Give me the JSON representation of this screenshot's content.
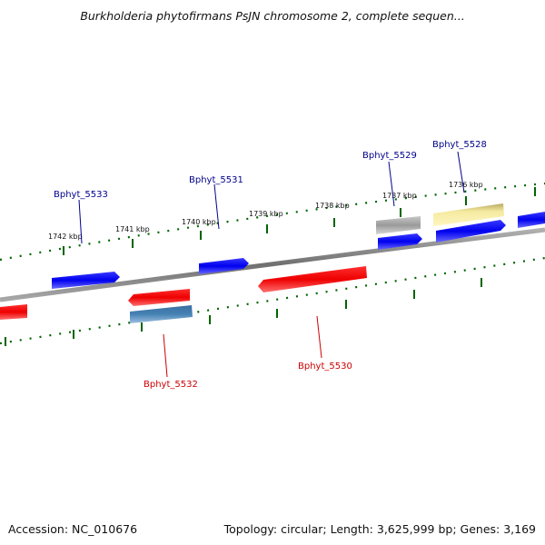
{
  "title": "Burkholderia phytofirmans PsJN chromosome 2, complete sequen...",
  "footer": {
    "accession": "Accession: NC_010676",
    "summary": "Topology: circular; Length: 3,625,999 bp; Genes: 3,169"
  },
  "ruler": {
    "unit_labels": [
      "1742 kbp",
      "1741 kbp",
      "1740 kbp",
      "1739 kbp",
      "1738 kbp",
      "1737 kbp",
      "1736 kbp"
    ]
  },
  "genes": [
    {
      "id": "g5533",
      "name": "Bphyt_5533",
      "strand": "forward",
      "color": "#0000ff"
    },
    {
      "id": "g5531",
      "name": "Bphyt_5531",
      "strand": "forward",
      "color": "#0000ff"
    },
    {
      "id": "g5529",
      "name": "Bphyt_5529",
      "strand": "forward",
      "color": "#0000ff"
    },
    {
      "id": "g5528",
      "name": "Bphyt_5528",
      "strand": "forward",
      "color": "#0000ff"
    },
    {
      "id": "g5532",
      "name": "Bphyt_5532",
      "strand": "reverse",
      "color": "#ff0000"
    },
    {
      "id": "g5530",
      "name": "Bphyt_5530",
      "strand": "reverse",
      "color": "#ff0000"
    }
  ],
  "colors": {
    "forward_label": "#00008b",
    "reverse_label": "#cc0000",
    "forward_gene": "#0000ff",
    "reverse_gene": "#ff0000",
    "tick": "#006400",
    "backbone": "#808080",
    "gray_feature": "#a0a0a0",
    "yellow_feature": "#f0e68c",
    "steel_feature": "#4682b4"
  }
}
